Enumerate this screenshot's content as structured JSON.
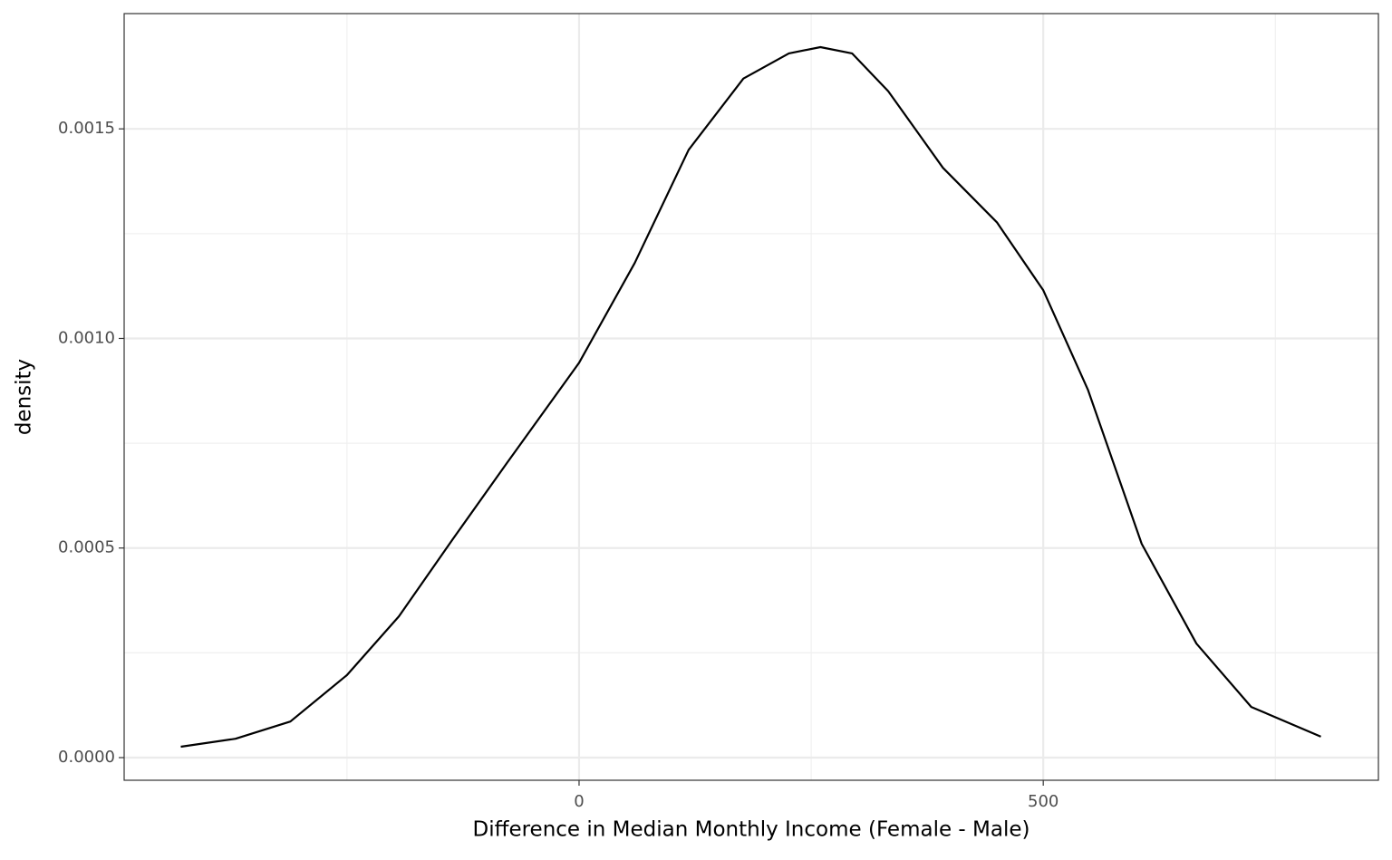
{
  "chart_data": {
    "type": "line",
    "x_label": "Difference in Median Monthly Income (Female - Male)",
    "y_label": "density",
    "x": [
      -429,
      -370,
      -311,
      -250,
      -194,
      -136,
      -77,
      0,
      60,
      118,
      177,
      226,
      260,
      294,
      333,
      392,
      450,
      500,
      548,
      606,
      665,
      724,
      799
    ],
    "series": [
      {
        "color": "#000000",
        "values": [
          2.6e-05,
          4.5e-05,
          8.6e-05,
          0.000197,
          0.000337,
          0.000521,
          0.000705,
          0.000942,
          0.00118,
          0.00145,
          0.00162,
          0.00168,
          0.001695,
          0.00168,
          0.00159,
          0.001407,
          0.001277,
          0.001115,
          0.000878,
          0.00051,
          0.000272,
          0.000121,
          5e-05
        ]
      }
    ],
    "xlim": [
      -490,
      861
    ],
    "ylim": [
      -5.4e-05,
      0.001775
    ],
    "xticks": [
      0,
      500
    ],
    "yticks": [
      {
        "value": 0,
        "label": "0.0000"
      },
      {
        "value": 0.0005,
        "label": "0.0005"
      },
      {
        "value": 0.001,
        "label": "0.0010"
      },
      {
        "value": 0.0015,
        "label": "0.0015"
      }
    ],
    "x_minor_ticks": [
      -250,
      250,
      750
    ],
    "y_minor_ticks": [
      0.00025,
      0.00075,
      0.00125
    ],
    "grid": true
  }
}
